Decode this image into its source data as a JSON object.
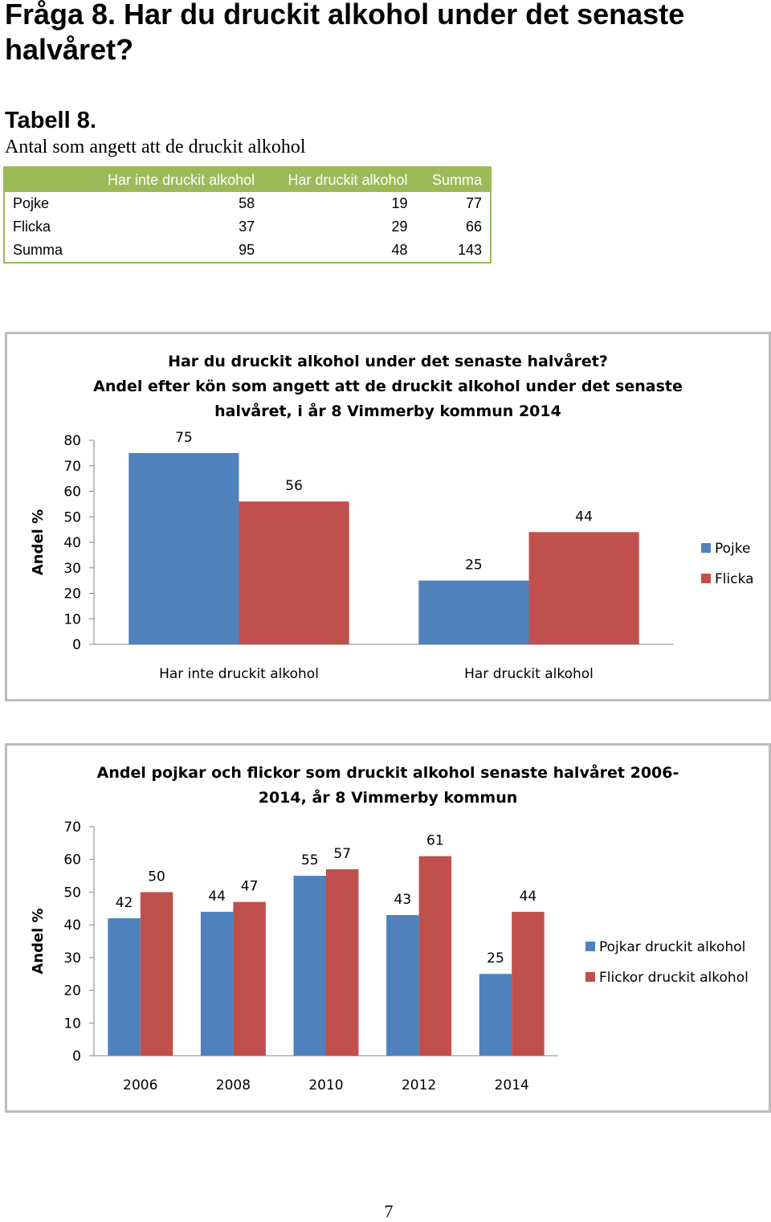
{
  "page": {
    "heading": "Fråga 8. Har du druckit alkohol under det senaste halvåret?",
    "table_title": "Tabell 8.",
    "table_caption": "Antal som angett att de druckit alkohol",
    "page_number": "7"
  },
  "table": {
    "columns": [
      "",
      "Har inte druckit alkohol",
      "Har druckit alkohol",
      "Summa"
    ],
    "rows": [
      [
        "Pojke",
        "58",
        "19",
        "77"
      ],
      [
        "Flicka",
        "37",
        "29",
        "66"
      ],
      [
        "Summa",
        "95",
        "48",
        "143"
      ]
    ]
  },
  "chart_data": [
    {
      "type": "bar",
      "title": "Har du druckit alkohol under det senaste halvåret? Andel efter kön som angett att de druckit alkohol under det senaste halvåret, i år 8 Vimmerby kommun 2014",
      "title_lines": [
        "Har du druckit alkohol under det senaste halvåret?",
        "Andel efter kön som angett att de druckit alkohol under det senaste",
        "halvåret, i år 8 Vimmerby kommun 2014"
      ],
      "ylabel": "Andel %",
      "xlabel": "",
      "ylim": [
        0,
        80
      ],
      "yticks": [
        0,
        10,
        20,
        30,
        40,
        50,
        60,
        70,
        80
      ],
      "categories": [
        "Har inte druckit alkohol",
        "Har druckit alkohol"
      ],
      "series": [
        {
          "name": "Pojke",
          "values": [
            75,
            25
          ],
          "color": "#4f81bd"
        },
        {
          "name": "Flicka",
          "values": [
            56,
            44
          ],
          "color": "#c0504d"
        }
      ],
      "legend": "right",
      "grid": false
    },
    {
      "type": "bar",
      "title": "Andel pojkar och flickor som druckit alkohol senaste halvåret 2006-2014, år 8 Vimmerby kommun",
      "title_lines": [
        "Andel pojkar och flickor som druckit alkohol senaste halvåret 2006-",
        "2014, år 8 Vimmerby kommun"
      ],
      "ylabel": "Andel %",
      "xlabel": "",
      "ylim": [
        0,
        70
      ],
      "yticks": [
        0,
        10,
        20,
        30,
        40,
        50,
        60,
        70
      ],
      "categories": [
        "2006",
        "2008",
        "2010",
        "2012",
        "2014"
      ],
      "series": [
        {
          "name": "Pojkar druckit alkohol",
          "values": [
            42,
            44,
            55,
            43,
            25
          ],
          "color": "#4f81bd"
        },
        {
          "name": "Flickor druckit alkohol",
          "values": [
            50,
            47,
            57,
            61,
            44
          ],
          "color": "#c0504d"
        }
      ],
      "legend": "right",
      "grid": false
    }
  ]
}
